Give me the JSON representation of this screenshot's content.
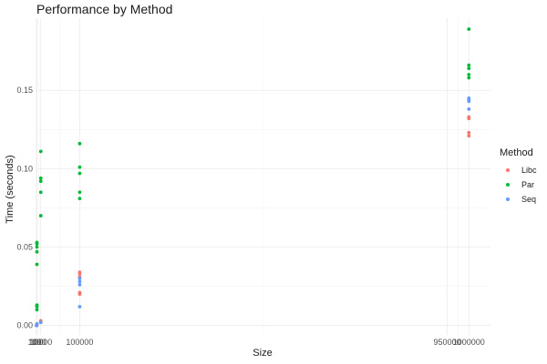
{
  "chart_data": {
    "type": "scatter",
    "title": "Performance by Method",
    "xlabel": "Size",
    "ylabel": "Time (seconds)",
    "x_scale": "linear",
    "xlim": [
      0,
      1050000
    ],
    "ylim": [
      -0.006,
      0.196
    ],
    "grid": true,
    "legend_position": "right",
    "legend_title": "Method",
    "x_ticks": [
      {
        "value": 10,
        "label": "10"
      },
      {
        "value": 100,
        "label": "100"
      },
      {
        "value": 1000,
        "label": "1000"
      },
      {
        "value": 10000,
        "label": "10000"
      },
      {
        "value": 100000,
        "label": "100000"
      },
      {
        "value": 950000,
        "label": "950000"
      },
      {
        "value": 1000000,
        "label": "1000000"
      }
    ],
    "y_ticks": [
      {
        "value": 0.0,
        "label": "0.00"
      },
      {
        "value": 0.05,
        "label": "0.05"
      },
      {
        "value": 0.1,
        "label": "0.10"
      },
      {
        "value": 0.15,
        "label": "0.15"
      }
    ],
    "series": [
      {
        "name": "Libc",
        "color": "#F8766D",
        "points": [
          [
            10,
            0.0
          ],
          [
            100,
            0.0
          ],
          [
            1000,
            0.0
          ],
          [
            10000,
            0.002
          ],
          [
            10000,
            0.003
          ],
          [
            100000,
            0.02
          ],
          [
            100000,
            0.021
          ],
          [
            100000,
            0.031
          ],
          [
            100000,
            0.033
          ],
          [
            100000,
            0.034
          ],
          [
            1000000,
            0.121
          ],
          [
            1000000,
            0.123
          ],
          [
            1000000,
            0.132
          ],
          [
            1000000,
            0.133
          ]
        ]
      },
      {
        "name": "Par",
        "color": "#00BA38",
        "points": [
          [
            1000,
            0.01
          ],
          [
            1000,
            0.012
          ],
          [
            1000,
            0.013
          ],
          [
            1000,
            0.039
          ],
          [
            1000,
            0.047
          ],
          [
            1000,
            0.05
          ],
          [
            1000,
            0.052
          ],
          [
            1000,
            0.053
          ],
          [
            10000,
            0.07
          ],
          [
            10000,
            0.085
          ],
          [
            10000,
            0.092
          ],
          [
            10000,
            0.094
          ],
          [
            10000,
            0.111
          ],
          [
            100000,
            0.081
          ],
          [
            100000,
            0.085
          ],
          [
            100000,
            0.097
          ],
          [
            100000,
            0.101
          ],
          [
            100000,
            0.116
          ],
          [
            1000000,
            0.158
          ],
          [
            1000000,
            0.16
          ],
          [
            1000000,
            0.164
          ],
          [
            1000000,
            0.166
          ],
          [
            1000000,
            0.189
          ]
        ]
      },
      {
        "name": "Seq",
        "color": "#619CFF",
        "points": [
          [
            10,
            0.0
          ],
          [
            100,
            0.0
          ],
          [
            1000,
            0.001
          ],
          [
            10000,
            0.002
          ],
          [
            100000,
            0.012
          ],
          [
            100000,
            0.026
          ],
          [
            100000,
            0.028
          ],
          [
            100000,
            0.03
          ],
          [
            1000000,
            0.138
          ],
          [
            1000000,
            0.143
          ],
          [
            1000000,
            0.144
          ],
          [
            1000000,
            0.145
          ]
        ]
      }
    ]
  }
}
